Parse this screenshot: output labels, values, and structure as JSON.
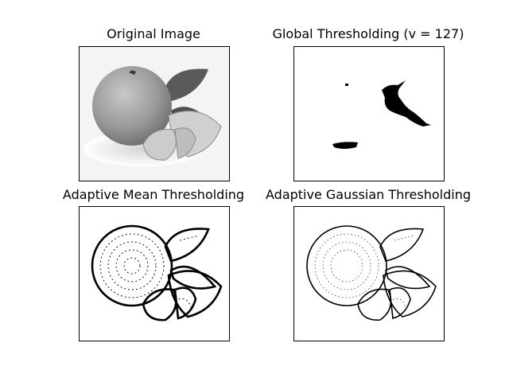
{
  "figure": {
    "panels": [
      {
        "title": "Original Image",
        "kind": "grayscale"
      },
      {
        "title": "Global Thresholding (v = 127)",
        "kind": "global-binary"
      },
      {
        "title": "Adaptive Mean Thresholding",
        "kind": "adaptive-edges"
      },
      {
        "title": "Adaptive Gaussian Thresholding",
        "kind": "adaptive-edges"
      }
    ]
  }
}
